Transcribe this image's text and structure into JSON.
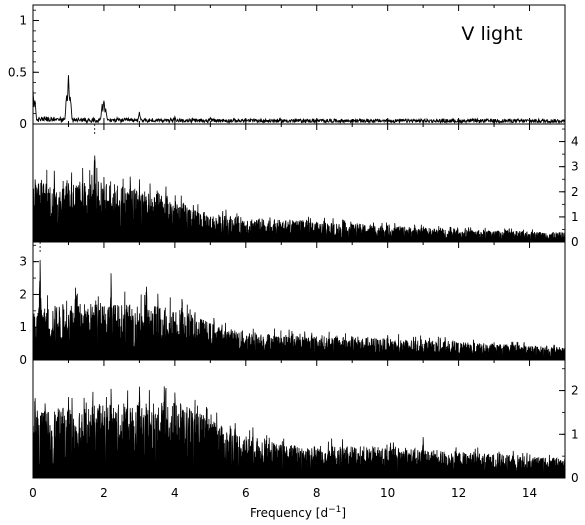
{
  "chart_data": {
    "type": "line",
    "layout": "4 vertically stacked periodogram panels sharing the frequency axis",
    "xlabel": "Frequency [d",
    "xlabel_superscript": "−1",
    "xlabel_close": "]",
    "xlim": [
      0,
      15
    ],
    "xticks": [
      "0",
      "2",
      "4",
      "6",
      "8",
      "10",
      "12",
      "14"
    ],
    "panels": [
      {
        "id": "window",
        "annotation": "V light",
        "y_axis_side": "left",
        "ylim": [
          0,
          1.15
        ],
        "yticks": [
          {
            "v": 0,
            "t": "0"
          },
          {
            "v": 0.5,
            "t": "0.5"
          },
          {
            "v": 1,
            "t": "1"
          }
        ],
        "peaks": [
          {
            "x": 0.0,
            "y": 0.36
          },
          {
            "x": 0.05,
            "y": 0.26
          },
          {
            "x": 0.95,
            "y": 0.32
          },
          {
            "x": 1.0,
            "y": 0.5
          },
          {
            "x": 1.05,
            "y": 0.3
          },
          {
            "x": 1.95,
            "y": 0.2
          },
          {
            "x": 2.0,
            "y": 0.26
          },
          {
            "x": 2.05,
            "y": 0.17
          },
          {
            "x": 3.0,
            "y": 0.12
          },
          {
            "x": 4.0,
            "y": 0.08
          },
          {
            "x": 5.0,
            "y": 0.07
          },
          {
            "x": 6.0,
            "y": 0.05
          }
        ],
        "base_level": 0.03,
        "noise_level": 0.03
      },
      {
        "id": "original-data",
        "y_axis_side": "right",
        "ylim": [
          0,
          4.7
        ],
        "yticks": [
          {
            "v": 0,
            "t": "0"
          },
          {
            "v": 1,
            "t": "1"
          },
          {
            "v": 2,
            "t": "2"
          },
          {
            "v": 3,
            "t": "3"
          },
          {
            "v": 4,
            "t": "4"
          }
        ],
        "marker_x": 1.74,
        "peaks": [
          {
            "x": 0.6,
            "y": 2.9
          },
          {
            "x": 1.0,
            "y": 2.6
          },
          {
            "x": 1.74,
            "y": 4.0
          },
          {
            "x": 2.0,
            "y": 2.6
          },
          {
            "x": 2.74,
            "y": 2.7
          },
          {
            "x": 3.5,
            "y": 2.2
          }
        ],
        "envelope": [
          {
            "x": 0,
            "y": 2.2
          },
          {
            "x": 2,
            "y": 2.2
          },
          {
            "x": 3.5,
            "y": 1.8
          },
          {
            "x": 5,
            "y": 1.0
          },
          {
            "x": 7,
            "y": 0.8
          },
          {
            "x": 10,
            "y": 0.6
          },
          {
            "x": 12,
            "y": 0.45
          },
          {
            "x": 15,
            "y": 0.35
          }
        ]
      },
      {
        "id": "after-prewhitening-1",
        "y_axis_side": "left",
        "ylim": [
          0,
          3.6
        ],
        "yticks": [
          {
            "v": 0,
            "t": "0"
          },
          {
            "v": 1,
            "t": "1"
          },
          {
            "v": 2,
            "t": "2"
          },
          {
            "v": 3,
            "t": "3"
          }
        ],
        "marker_x": 0.2,
        "peaks": [
          {
            "x": 0.2,
            "y": 3.2
          },
          {
            "x": 1.2,
            "y": 2.3
          },
          {
            "x": 2.2,
            "y": 2.7
          },
          {
            "x": 3.2,
            "y": 2.5
          },
          {
            "x": 4.2,
            "y": 2.0
          },
          {
            "x": 5.1,
            "y": 1.4
          }
        ],
        "envelope": [
          {
            "x": 0,
            "y": 1.4
          },
          {
            "x": 1,
            "y": 1.6
          },
          {
            "x": 4,
            "y": 1.5
          },
          {
            "x": 5.3,
            "y": 0.9
          },
          {
            "x": 7,
            "y": 0.7
          },
          {
            "x": 10,
            "y": 0.6
          },
          {
            "x": 12,
            "y": 0.5
          },
          {
            "x": 15,
            "y": 0.35
          }
        ]
      },
      {
        "id": "after-prewhitening-2",
        "y_axis_side": "right",
        "ylim": [
          0,
          2.7
        ],
        "yticks": [
          {
            "v": 0,
            "t": "0"
          },
          {
            "v": 1,
            "t": "1"
          },
          {
            "v": 2,
            "t": "2"
          }
        ],
        "peaks": [
          {
            "x": 1.0,
            "y": 1.9
          },
          {
            "x": 2.2,
            "y": 2.3
          },
          {
            "x": 3.0,
            "y": 2.3
          },
          {
            "x": 4.0,
            "y": 2.1
          },
          {
            "x": 5.0,
            "y": 1.3
          },
          {
            "x": 11.0,
            "y": 1.0
          }
        ],
        "envelope": [
          {
            "x": 0,
            "y": 1.4
          },
          {
            "x": 1.5,
            "y": 1.5
          },
          {
            "x": 4.2,
            "y": 1.6
          },
          {
            "x": 5.5,
            "y": 1.0
          },
          {
            "x": 7,
            "y": 0.7
          },
          {
            "x": 10,
            "y": 0.65
          },
          {
            "x": 12,
            "y": 0.55
          },
          {
            "x": 15,
            "y": 0.4
          }
        ]
      }
    ],
    "grid": false,
    "legend": "none"
  }
}
